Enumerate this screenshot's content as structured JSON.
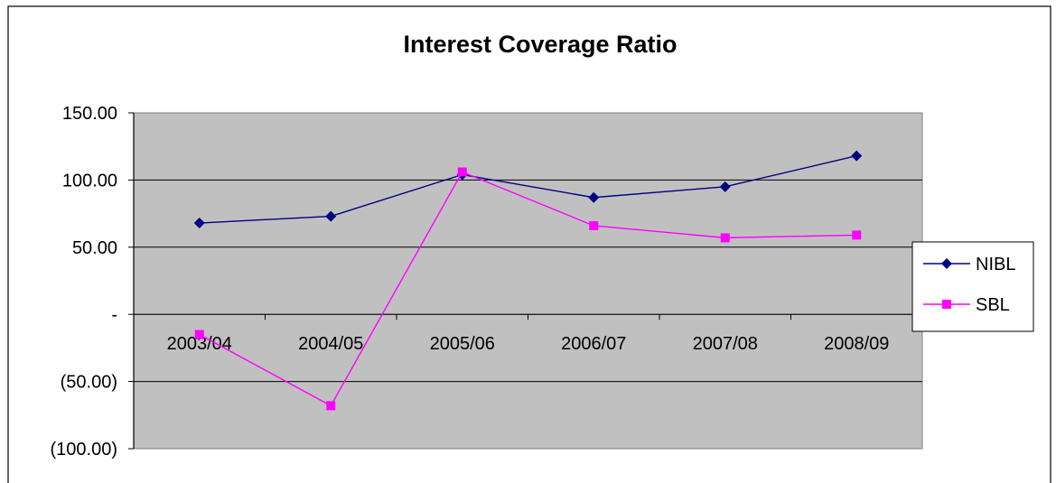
{
  "chart_data": {
    "type": "line",
    "title": "Interest Coverage Ratio",
    "xlabel": "",
    "ylabel": "",
    "categories": [
      "2003/04",
      "2004/05",
      "2005/06",
      "2006/07",
      "2007/08",
      "2008/09"
    ],
    "ylim": [
      -100,
      150
    ],
    "y_ticks": [
      150,
      100,
      50,
      0,
      -50,
      -100
    ],
    "y_tick_labels": [
      "150.00",
      "100.00",
      "50.00",
      "-",
      "(50.00)",
      "(100.00)"
    ],
    "grid": true,
    "legend_position": "right",
    "plot_background": "#c0c0c0",
    "series": [
      {
        "name": "NIBL",
        "color": "#000080",
        "marker": "diamond",
        "values": [
          68,
          73,
          104,
          87,
          95,
          118
        ]
      },
      {
        "name": "SBL",
        "color": "#ff00ff",
        "marker": "square",
        "values": [
          -15,
          -68,
          106,
          66,
          57,
          59
        ]
      }
    ]
  }
}
